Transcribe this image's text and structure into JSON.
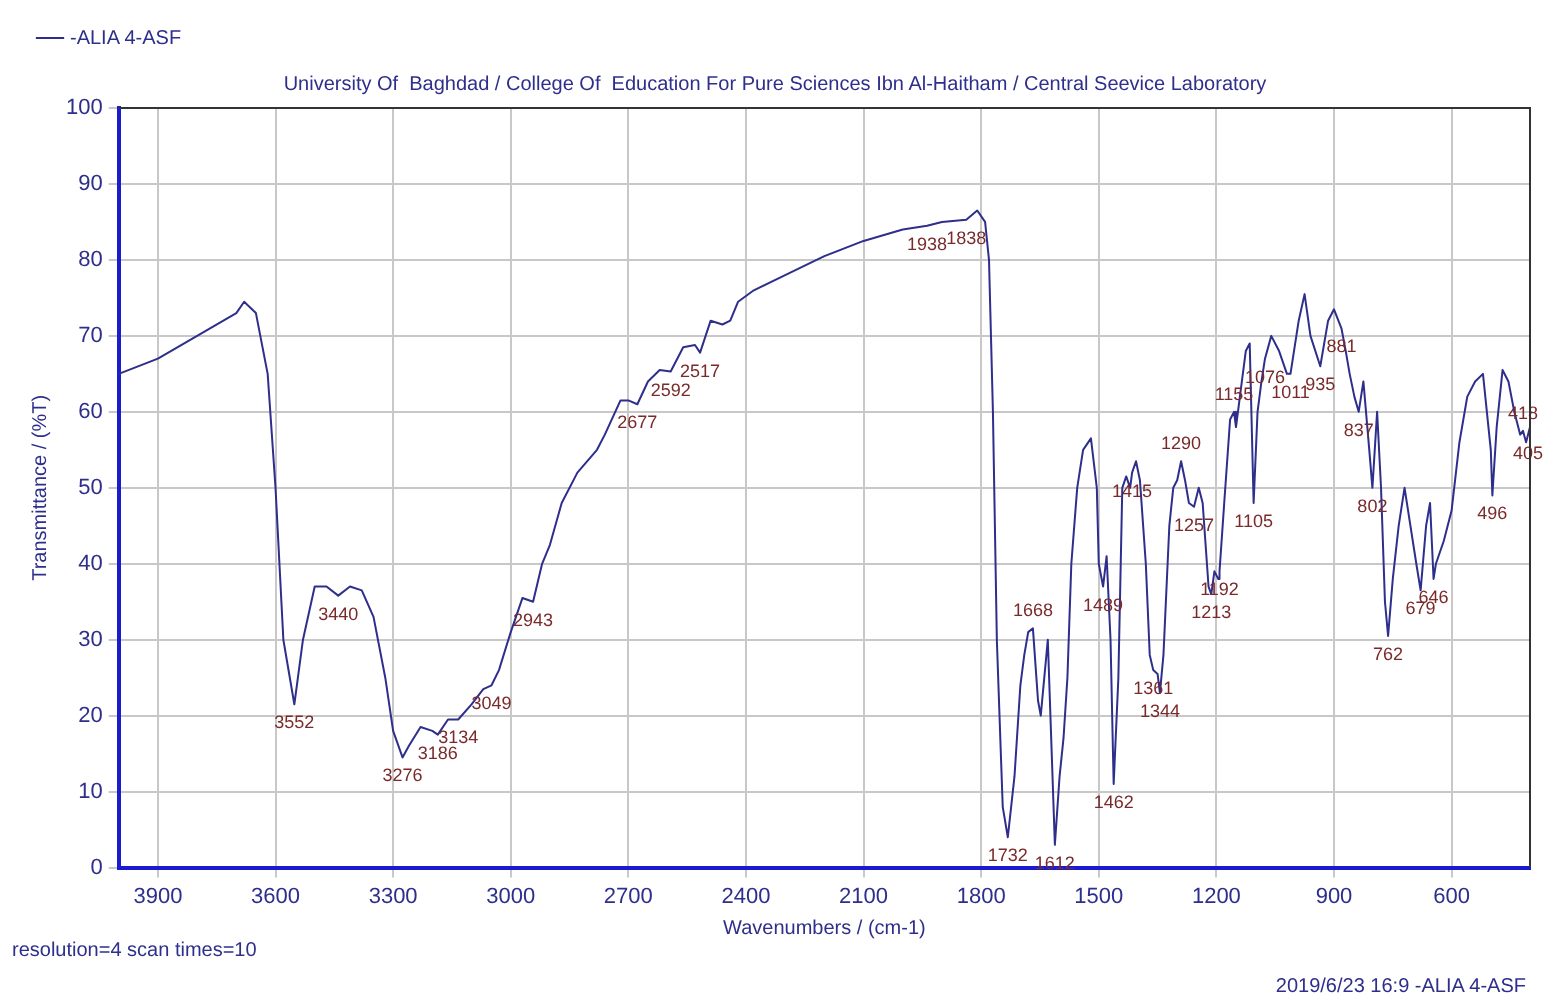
{
  "chart_data": {
    "type": "line",
    "title": "University Of  Baghdad / College Of  Education For Pure Sciences Ibn Al-Haitham / Central Seevice Laboratory",
    "xlabel": "Wavenumbers / (cm-1)",
    "ylabel": "Transmittance / (%T)",
    "xlim": [
      4000,
      400
    ],
    "xticks": [
      3900,
      3600,
      3300,
      3000,
      2700,
      2400,
      2100,
      1800,
      1500,
      1200,
      900,
      600
    ],
    "ylim": [
      0,
      100
    ],
    "yticks": [
      0,
      10,
      20,
      30,
      40,
      50,
      60,
      70,
      80,
      90,
      100
    ],
    "grid": true,
    "legend": "top left",
    "line_style": "solid",
    "marker": "none",
    "series": [
      {
        "name": "-ALIA 4-ASF",
        "color": "#2e2e8c",
        "x": [
          4000,
          3900,
          3800,
          3700,
          3680,
          3650,
          3620,
          3600,
          3580,
          3552,
          3530,
          3500,
          3470,
          3440,
          3410,
          3380,
          3350,
          3320,
          3300,
          3276,
          3260,
          3230,
          3200,
          3186,
          3160,
          3134,
          3100,
          3070,
          3049,
          3030,
          3000,
          2970,
          2943,
          2920,
          2900,
          2870,
          2830,
          2780,
          2760,
          2720,
          2700,
          2677,
          2650,
          2620,
          2592,
          2560,
          2530,
          2517,
          2490,
          2460,
          2440,
          2420,
          2380,
          2300,
          2200,
          2100,
          2000,
          1938,
          1900,
          1838,
          1810,
          1790,
          1780,
          1770,
          1760,
          1745,
          1732,
          1715,
          1700,
          1690,
          1680,
          1668,
          1655,
          1648,
          1630,
          1620,
          1612,
          1600,
          1590,
          1580,
          1570,
          1555,
          1540,
          1520,
          1505,
          1500,
          1489,
          1480,
          1470,
          1462,
          1450,
          1440,
          1430,
          1420,
          1415,
          1405,
          1395,
          1380,
          1370,
          1361,
          1350,
          1344,
          1335,
          1320,
          1310,
          1300,
          1290,
          1280,
          1270,
          1257,
          1245,
          1235,
          1220,
          1213,
          1205,
          1195,
          1192,
          1180,
          1165,
          1155,
          1150,
          1140,
          1125,
          1115,
          1105,
          1095,
          1085,
          1076,
          1060,
          1040,
          1020,
          1011,
          990,
          975,
          960,
          935,
          915,
          900,
          881,
          870,
          860,
          848,
          837,
          825,
          810,
          802,
          790,
          780,
          770,
          762,
          750,
          735,
          720,
          705,
          690,
          679,
          665,
          655,
          646,
          640,
          620,
          600,
          580,
          560,
          540,
          520,
          500,
          496,
          485,
          470,
          455,
          440,
          425,
          418,
          410,
          405,
          400
        ],
        "values": [
          65,
          67,
          70,
          73,
          74.5,
          73,
          65,
          50,
          30,
          21.5,
          30,
          37,
          37,
          35.8,
          37,
          36.5,
          33,
          25,
          18,
          14.5,
          16,
          18.5,
          18,
          17.5,
          19.5,
          19.5,
          21.5,
          23.5,
          24,
          26,
          31,
          35.5,
          35,
          40,
          42.5,
          48,
          52,
          55,
          57,
          61.5,
          61.5,
          61,
          64,
          65.5,
          65.3,
          68.5,
          68.8,
          67.8,
          72,
          71.5,
          72,
          74.5,
          76,
          78,
          80.5,
          82.5,
          84,
          84.5,
          85,
          85.3,
          86.5,
          85,
          80,
          60,
          30,
          8,
          4,
          12,
          24,
          28,
          31,
          31.5,
          22,
          20,
          30,
          15,
          3,
          12,
          17,
          25,
          40,
          50,
          55,
          56.5,
          50,
          40,
          37,
          41,
          30,
          11,
          25,
          50,
          51.5,
          50,
          52,
          53.5,
          51,
          40,
          28,
          26,
          25.5,
          23,
          28,
          45,
          50,
          51,
          53.5,
          51,
          48,
          47.5,
          50,
          48,
          37,
          36,
          39,
          38,
          39,
          48,
          59,
          60,
          58,
          62,
          68,
          69,
          48,
          60,
          64,
          67,
          70,
          68,
          65,
          65,
          72,
          75.5,
          70,
          66,
          72,
          73.5,
          71,
          68,
          65,
          62,
          60,
          64,
          55,
          50,
          60,
          50,
          35,
          30.5,
          38,
          45,
          50,
          45,
          40,
          36.5,
          45,
          48,
          38,
          40,
          43,
          47,
          56,
          62,
          64,
          65,
          55,
          49,
          58,
          65.5,
          64,
          60,
          57,
          57.5,
          56,
          57,
          58
        ]
      }
    ],
    "annotations": [
      {
        "text": "3552",
        "x": 3552,
        "y": 21.5
      },
      {
        "text": "3440",
        "x": 3440,
        "y": 35.8
      },
      {
        "text": "3276",
        "x": 3276,
        "y": 14.5
      },
      {
        "text": "3186",
        "x": 3186,
        "y": 17.5
      },
      {
        "text": "3134",
        "x": 3134,
        "y": 19.5
      },
      {
        "text": "3049",
        "x": 3049,
        "y": 24
      },
      {
        "text": "2943",
        "x": 2943,
        "y": 35
      },
      {
        "text": "2677",
        "x": 2677,
        "y": 61
      },
      {
        "text": "2592",
        "x": 2592,
        "y": 65.3
      },
      {
        "text": "2517",
        "x": 2517,
        "y": 67.8
      },
      {
        "text": "1938",
        "x": 1938,
        "y": 84.5
      },
      {
        "text": "1838",
        "x": 1838,
        "y": 85.3
      },
      {
        "text": "1732",
        "x": 1732,
        "y": 4
      },
      {
        "text": "1612",
        "x": 1612,
        "y": 3
      },
      {
        "text": "1668",
        "x": 1668,
        "y": 31.5
      },
      {
        "text": "1489",
        "x": 1489,
        "y": 37
      },
      {
        "text": "1462",
        "x": 1462,
        "y": 11
      },
      {
        "text": "1361",
        "x": 1361,
        "y": 26
      },
      {
        "text": "1344",
        "x": 1344,
        "y": 23
      },
      {
        "text": "1415",
        "x": 1415,
        "y": 52
      },
      {
        "text": "1290",
        "x": 1290,
        "y": 53.5
      },
      {
        "text": "1257",
        "x": 1257,
        "y": 47.5
      },
      {
        "text": "1213",
        "x": 1213,
        "y": 36
      },
      {
        "text": "1192",
        "x": 1192,
        "y": 39
      },
      {
        "text": "1155",
        "x": 1155,
        "y": 60
      },
      {
        "text": "1105",
        "x": 1105,
        "y": 48
      },
      {
        "text": "1076",
        "x": 1076,
        "y": 67
      },
      {
        "text": "1011",
        "x": 1011,
        "y": 65
      },
      {
        "text": "935",
        "x": 935,
        "y": 66
      },
      {
        "text": "881",
        "x": 881,
        "y": 71
      },
      {
        "text": "837",
        "x": 837,
        "y": 60
      },
      {
        "text": "802",
        "x": 802,
        "y": 50
      },
      {
        "text": "762",
        "x": 762,
        "y": 30.5
      },
      {
        "text": "679",
        "x": 679,
        "y": 36.5
      },
      {
        "text": "646",
        "x": 646,
        "y": 38
      },
      {
        "text": "496",
        "x": 496,
        "y": 49
      },
      {
        "text": "418",
        "x": 418,
        "y": 57.5
      },
      {
        "text": "405",
        "x": 405,
        "y": 57
      },
      "resolution=4 scan times=10",
      "2019/6/23 16:9 -ALIA 4-ASF"
    ]
  }
}
